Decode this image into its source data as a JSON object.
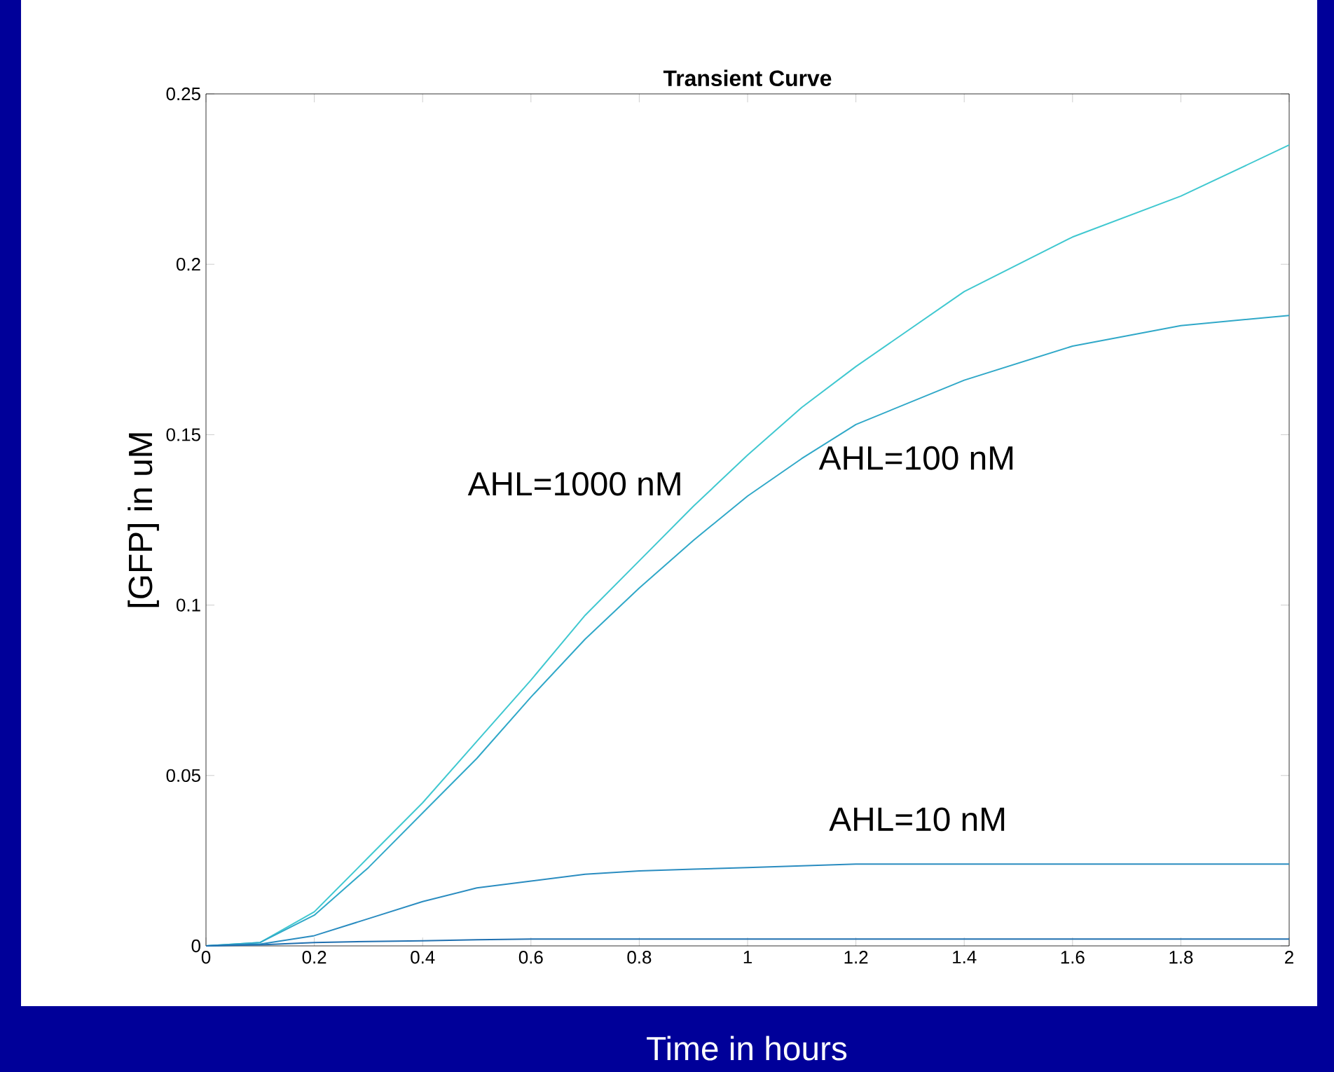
{
  "chart_data": {
    "type": "line",
    "title": "Transient Curve",
    "xlabel": "Time in hours",
    "ylabel": "[GFP] in uM",
    "xlim": [
      0,
      2
    ],
    "ylim": [
      0,
      0.25
    ],
    "xticks": [
      0,
      0.2,
      0.4,
      0.6,
      0.8,
      1,
      1.2,
      1.4,
      1.6,
      1.8,
      2
    ],
    "yticks": [
      0,
      0.05,
      0.1,
      0.15,
      0.2,
      0.25
    ],
    "grid": false,
    "legend": false,
    "marker": "none",
    "line_style": "solid",
    "x": [
      0,
      0.1,
      0.2,
      0.3,
      0.4,
      0.5,
      0.6,
      0.7,
      0.8,
      0.9,
      1.0,
      1.1,
      1.2,
      1.4,
      1.6,
      1.8,
      2.0
    ],
    "series": [
      {
        "name": "AHL=1000 nM",
        "color": "#40c8d0",
        "values": [
          0,
          0.001,
          0.01,
          0.026,
          0.042,
          0.06,
          0.078,
          0.097,
          0.113,
          0.129,
          0.144,
          0.158,
          0.17,
          0.192,
          0.208,
          0.22,
          0.235
        ]
      },
      {
        "name": "AHL=100 nM",
        "color": "#30a8c8",
        "values": [
          0,
          0.001,
          0.009,
          0.023,
          0.039,
          0.055,
          0.073,
          0.09,
          0.105,
          0.119,
          0.132,
          0.143,
          0.153,
          0.166,
          0.176,
          0.182,
          0.185
        ]
      },
      {
        "name": "AHL=10 nM",
        "color": "#2a8cc0",
        "values": [
          0,
          0.0005,
          0.003,
          0.008,
          0.013,
          0.017,
          0.019,
          0.021,
          0.022,
          0.0225,
          0.023,
          0.0235,
          0.024,
          0.024,
          0.024,
          0.024,
          0.024
        ]
      },
      {
        "color": "#2070b0",
        "values": [
          0,
          0.0003,
          0.001,
          0.0013,
          0.0015,
          0.0018,
          0.002,
          0.002,
          0.002,
          0.002,
          0.002,
          0.002,
          0.002,
          0.002,
          0.002,
          0.002,
          0.002
        ]
      }
    ]
  }
}
